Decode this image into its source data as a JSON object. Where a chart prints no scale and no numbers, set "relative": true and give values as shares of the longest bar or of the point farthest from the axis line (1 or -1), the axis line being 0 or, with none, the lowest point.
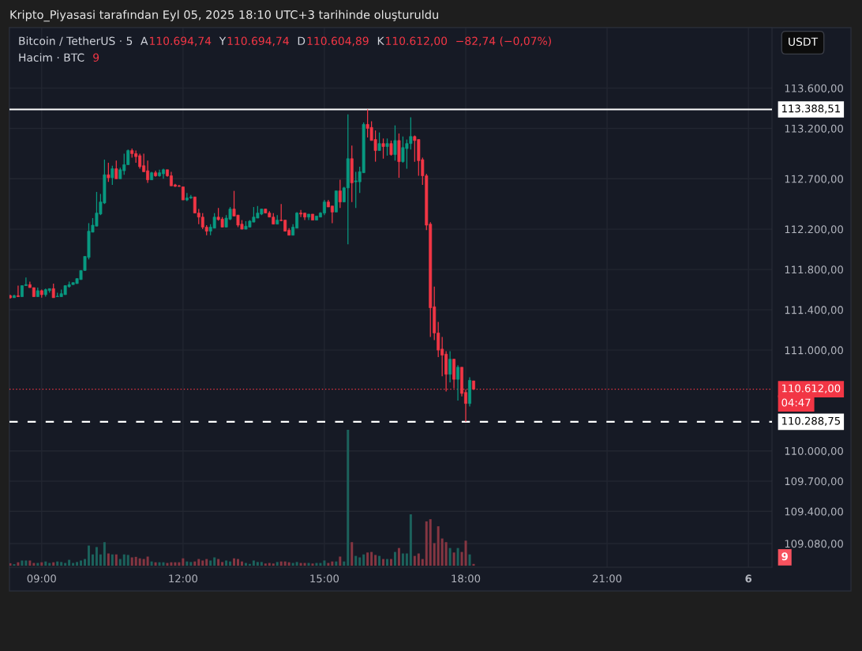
{
  "chart_data": [
    {
      "type": "candlestick",
      "title": "Bitcoin / TetherUS · 5",
      "annotations": [
        "A",
        "110.694,74",
        "Y",
        "110.694,74",
        "D",
        "110.604,89",
        "K",
        "110.612,00",
        "−82,74 (−0,07%)",
        "Kripto_Piyasasi tarafından Eyl 05, 2025 18:10 UTC+3 tarihinde oluşturuldu",
        "USDT",
        "04:47"
      ],
      "x": [
        "2025-09-05T08:20",
        "2025-09-05T08:25",
        "2025-09-05T08:30",
        "2025-09-05T08:35",
        "2025-09-05T08:40",
        "2025-09-05T08:45",
        "2025-09-05T08:50",
        "2025-09-05T08:55",
        "2025-09-05T09:00",
        "2025-09-05T09:05",
        "2025-09-05T09:10",
        "2025-09-05T09:15",
        "2025-09-05T09:20",
        "2025-09-05T09:25",
        "2025-09-05T09:30",
        "2025-09-05T09:35",
        "2025-09-05T09:40",
        "2025-09-05T09:45",
        "2025-09-05T09:50",
        "2025-09-05T09:55",
        "2025-09-05T10:00",
        "2025-09-05T10:05",
        "2025-09-05T10:10",
        "2025-09-05T10:15",
        "2025-09-05T10:20",
        "2025-09-05T10:25",
        "2025-09-05T10:30",
        "2025-09-05T10:35",
        "2025-09-05T10:40",
        "2025-09-05T10:45",
        "2025-09-05T10:50",
        "2025-09-05T10:55",
        "2025-09-05T11:00",
        "2025-09-05T11:05",
        "2025-09-05T11:10",
        "2025-09-05T11:15",
        "2025-09-05T11:20",
        "2025-09-05T11:25",
        "2025-09-05T11:30",
        "2025-09-05T11:35",
        "2025-09-05T11:40",
        "2025-09-05T11:45",
        "2025-09-05T11:50",
        "2025-09-05T11:55",
        "2025-09-05T12:00",
        "2025-09-05T12:05",
        "2025-09-05T12:10",
        "2025-09-05T12:15",
        "2025-09-05T12:20",
        "2025-09-05T12:25",
        "2025-09-05T12:30",
        "2025-09-05T12:35",
        "2025-09-05T12:40",
        "2025-09-05T12:45",
        "2025-09-05T12:50",
        "2025-09-05T12:55",
        "2025-09-05T13:00",
        "2025-09-05T13:05",
        "2025-09-05T13:10",
        "2025-09-05T13:15",
        "2025-09-05T13:20",
        "2025-09-05T13:25",
        "2025-09-05T13:30",
        "2025-09-05T13:35",
        "2025-09-05T13:40",
        "2025-09-05T13:45",
        "2025-09-05T13:50",
        "2025-09-05T13:55",
        "2025-09-05T14:00",
        "2025-09-05T14:05",
        "2025-09-05T14:10",
        "2025-09-05T14:15",
        "2025-09-05T14:20",
        "2025-09-05T14:25",
        "2025-09-05T14:30",
        "2025-09-05T14:35",
        "2025-09-05T14:40",
        "2025-09-05T14:45",
        "2025-09-05T14:50",
        "2025-09-05T14:55",
        "2025-09-05T15:00",
        "2025-09-05T15:05",
        "2025-09-05T15:10",
        "2025-09-05T15:15",
        "2025-09-05T15:20",
        "2025-09-05T15:25",
        "2025-09-05T15:30",
        "2025-09-05T15:35",
        "2025-09-05T15:40",
        "2025-09-05T15:45",
        "2025-09-05T15:50",
        "2025-09-05T15:55",
        "2025-09-05T16:00",
        "2025-09-05T16:05",
        "2025-09-05T16:10",
        "2025-09-05T16:15",
        "2025-09-05T16:20",
        "2025-09-05T16:25",
        "2025-09-05T16:30",
        "2025-09-05T16:35",
        "2025-09-05T16:40",
        "2025-09-05T16:45",
        "2025-09-05T16:50",
        "2025-09-05T16:55",
        "2025-09-05T17:00",
        "2025-09-05T17:05",
        "2025-09-05T17:10",
        "2025-09-05T17:15",
        "2025-09-05T17:20",
        "2025-09-05T17:25",
        "2025-09-05T17:30",
        "2025-09-05T17:35",
        "2025-09-05T17:40",
        "2025-09-05T17:45",
        "2025-09-05T17:50",
        "2025-09-05T17:55",
        "2025-09-05T18:00",
        "2025-09-05T18:05",
        "2025-09-05T18:10"
      ],
      "ohlc": [
        [
          111540,
          111550,
          111510,
          111520
        ],
        [
          111520,
          111550,
          111520,
          111540
        ],
        [
          111540,
          111640,
          111530,
          111530
        ],
        [
          111530,
          111640,
          111530,
          111640
        ],
        [
          111640,
          111720,
          111640,
          111650
        ],
        [
          111650,
          111680,
          111620,
          111620
        ],
        [
          111620,
          111620,
          111530,
          111530
        ],
        [
          111530,
          111620,
          111530,
          111590
        ],
        [
          111590,
          111600,
          111520,
          111550
        ],
        [
          111550,
          111610,
          111530,
          111600
        ],
        [
          111590,
          111610,
          111570,
          111610
        ],
        [
          111610,
          111660,
          111520,
          111520
        ],
        [
          111530,
          111570,
          111530,
          111535
        ],
        [
          111530,
          111600,
          111530,
          111560
        ],
        [
          111550,
          111640,
          111550,
          111640
        ],
        [
          111630,
          111680,
          111620,
          111650
        ],
        [
          111650,
          111670,
          111650,
          111670
        ],
        [
          111660,
          111710,
          111660,
          111710
        ],
        [
          111700,
          111790,
          111700,
          111790
        ],
        [
          111790,
          111930,
          111790,
          111930
        ],
        [
          111920,
          112260,
          111900,
          112180
        ],
        [
          112170,
          112310,
          112170,
          112240
        ],
        [
          112230,
          112570,
          112230,
          112360
        ],
        [
          112350,
          112550,
          112340,
          112470
        ],
        [
          112460,
          112890,
          112450,
          112740
        ],
        [
          112740,
          112860,
          112670,
          112710
        ],
        [
          112710,
          112830,
          112640,
          112800
        ],
        [
          112800,
          112880,
          112700,
          112700
        ],
        [
          112700,
          112810,
          112700,
          112790
        ],
        [
          112780,
          112950,
          112740,
          112840
        ],
        [
          112840,
          112990,
          112840,
          112980
        ],
        [
          112980,
          113000,
          112910,
          112950
        ],
        [
          112950,
          112980,
          112860,
          112920
        ],
        [
          112930,
          112950,
          112800,
          112820
        ],
        [
          112830,
          112950,
          112770,
          112770
        ],
        [
          112780,
          112880,
          112660,
          112690
        ],
        [
          112690,
          112770,
          112690,
          112760
        ],
        [
          112760,
          112780,
          112720,
          112730
        ],
        [
          112730,
          112790,
          112720,
          112760
        ],
        [
          112750,
          112800,
          112700,
          112790
        ],
        [
          112790,
          112790,
          112720,
          112730
        ],
        [
          112730,
          112770,
          112630,
          112630
        ],
        [
          112640,
          112650,
          112620,
          112625
        ],
        [
          112630,
          112640,
          112620,
          112625
        ],
        [
          112620,
          112620,
          112490,
          112490
        ],
        [
          112490,
          112560,
          112480,
          112510
        ],
        [
          112510,
          112540,
          112500,
          112520
        ],
        [
          112520,
          112520,
          112360,
          112360
        ],
        [
          112360,
          112400,
          112250,
          112320
        ],
        [
          112320,
          112360,
          112200,
          112220
        ],
        [
          112220,
          112240,
          112140,
          112180
        ],
        [
          112180,
          112250,
          112140,
          112220
        ],
        [
          112210,
          112360,
          112210,
          112320
        ],
        [
          112320,
          112410,
          112285,
          112295
        ],
        [
          112300,
          112320,
          112220,
          112220
        ],
        [
          112220,
          112340,
          112220,
          112310
        ],
        [
          112300,
          112420,
          112290,
          112400
        ],
        [
          112400,
          112580,
          112330,
          112330
        ],
        [
          112340,
          112340,
          112220,
          112240
        ],
        [
          112250,
          112290,
          112200,
          112200
        ],
        [
          112200,
          112280,
          112200,
          112230
        ],
        [
          112220,
          112290,
          112220,
          112280
        ],
        [
          112270,
          112420,
          112270,
          112320
        ],
        [
          112310,
          112430,
          112310,
          112360
        ],
        [
          112350,
          112400,
          112340,
          112400
        ],
        [
          112400,
          112400,
          112360,
          112360
        ],
        [
          112360,
          112380,
          112320,
          112320
        ],
        [
          112320,
          112360,
          112250,
          112250
        ],
        [
          112250,
          112340,
          112250,
          112290
        ],
        [
          112290,
          112450,
          112280,
          112285
        ],
        [
          112290,
          112290,
          112180,
          112180
        ],
        [
          112190,
          112210,
          112140,
          112140
        ],
        [
          112140,
          112250,
          112140,
          112220
        ],
        [
          112210,
          112370,
          112210,
          112360
        ],
        [
          112360,
          112390,
          112320,
          112350
        ],
        [
          112360,
          112360,
          112290,
          112320
        ],
        [
          112320,
          112350,
          112290,
          112350
        ],
        [
          112350,
          112350,
          112290,
          112290
        ],
        [
          112290,
          112330,
          112290,
          112330
        ],
        [
          112320,
          112370,
          112320,
          112360
        ],
        [
          112360,
          112490,
          112340,
          112470
        ],
        [
          112470,
          112490,
          112420,
          112420
        ],
        [
          112430,
          112430,
          112260,
          112370
        ],
        [
          112370,
          112580,
          112370,
          112580
        ],
        [
          112580,
          112690,
          112410,
          112470
        ],
        [
          112470,
          112620,
          112470,
          112610
        ],
        [
          112610,
          113340,
          112050,
          112900
        ],
        [
          112900,
          113030,
          112470,
          112660
        ],
        [
          112670,
          112770,
          112410,
          112680
        ],
        [
          112670,
          112820,
          112560,
          112770
        ],
        [
          112760,
          113260,
          112760,
          113240
        ],
        [
          113240,
          113388.51,
          113110,
          113200
        ],
        [
          113210,
          113270,
          113080,
          113080
        ],
        [
          113090,
          113180,
          112870,
          112980
        ],
        [
          112980,
          113160,
          112980,
          113050
        ],
        [
          113050,
          113100,
          112900,
          113020
        ],
        [
          113020,
          113100,
          112930,
          113050
        ],
        [
          113050,
          113080,
          112930,
          112940
        ],
        [
          112940,
          113230,
          112880,
          113080
        ],
        [
          113080,
          113150,
          112710,
          112870
        ],
        [
          112870,
          113120,
          112860,
          113010
        ],
        [
          113000,
          113090,
          112800,
          113050
        ],
        [
          113050,
          113310,
          112990,
          113120
        ],
        [
          113120,
          113130,
          112870,
          113080
        ],
        [
          113090,
          113090,
          112730,
          112880
        ],
        [
          112890,
          112910,
          112640,
          112730
        ],
        [
          112730,
          112750,
          112190,
          112240
        ],
        [
          112250,
          112270,
          111130,
          111420
        ],
        [
          111430,
          111630,
          111100,
          111170
        ],
        [
          111170,
          111280,
          110930,
          111000
        ],
        [
          111010,
          111130,
          110740,
          110950
        ],
        [
          110960,
          110990,
          110590,
          110760
        ],
        [
          110760,
          110990,
          110680,
          110910
        ],
        [
          110910,
          110910,
          110620,
          110710
        ],
        [
          110710,
          110850,
          110500,
          110830
        ],
        [
          110830,
          110830,
          110540,
          110570
        ],
        [
          110580,
          110610,
          110288.75,
          110470
        ],
        [
          110470,
          110730,
          110440,
          110700
        ],
        [
          110694.74,
          110694.74,
          110604.89,
          110612.0
        ]
      ],
      "colors": [
        "#f23645",
        "#089981",
        "#f23645",
        "#089981",
        "#089981",
        "#f23645",
        "#f23645",
        "#089981",
        "#f23645",
        "#089981",
        "#089981",
        "#f23645",
        "#089981",
        "#089981",
        "#089981",
        "#089981",
        "#089981",
        "#089981",
        "#089981",
        "#089981",
        "#089981",
        "#089981",
        "#089981",
        "#089981",
        "#089981",
        "#f23645",
        "#089981",
        "#f23645",
        "#089981",
        "#089981",
        "#089981",
        "#f23645",
        "#f23645",
        "#f23645",
        "#f23645",
        "#f23645",
        "#089981",
        "#f23645",
        "#089981",
        "#089981",
        "#f23645",
        "#f23645",
        "#f23645",
        "#f23645",
        "#f23645",
        "#089981",
        "#089981",
        "#f23645",
        "#f23645",
        "#f23645",
        "#f23645",
        "#089981",
        "#089981",
        "#f23645",
        "#f23645",
        "#089981",
        "#089981",
        "#f23645",
        "#f23645",
        "#f23645",
        "#089981",
        "#089981",
        "#089981",
        "#089981",
        "#089981",
        "#f23645",
        "#f23645",
        "#f23645",
        "#089981",
        "#f23645",
        "#f23645",
        "#f23645",
        "#089981",
        "#089981",
        "#f23645",
        "#f23645",
        "#089981",
        "#f23645",
        "#089981",
        "#089981",
        "#089981",
        "#f23645",
        "#f23645",
        "#089981",
        "#f23645",
        "#089981",
        "#089981",
        "#f23645",
        "#089981",
        "#089981",
        "#089981",
        "#f23645",
        "#f23645",
        "#f23645",
        "#089981",
        "#f23645",
        "#089981",
        "#f23645",
        "#089981",
        "#f23645",
        "#089981",
        "#089981",
        "#089981",
        "#f23645",
        "#f23645",
        "#f23645",
        "#f23645",
        "#f23645",
        "#f23645",
        "#f23645",
        "#f23645",
        "#f23645",
        "#089981",
        "#f23645",
        "#089981",
        "#f23645",
        "#f23645",
        "#089981",
        "#f23645"
      ],
      "xlim": [
        "2025-09-05T08:19",
        "2025-09-06T00:30"
      ],
      "xticks": [
        {
          "value": "2025-09-05T09:00",
          "label": "09:00"
        },
        {
          "value": "2025-09-05T12:00",
          "label": "12:00"
        },
        {
          "value": "2025-09-05T15:00",
          "label": "15:00"
        },
        {
          "value": "2025-09-05T18:00",
          "label": "18:00"
        },
        {
          "value": "2025-09-05T21:00",
          "label": "21:00"
        },
        {
          "value": "2025-09-06T00:00",
          "label": "6"
        }
      ],
      "ylim": [
        108845,
        114200
      ],
      "yticks": [
        {
          "value": 113600,
          "label": "113.600,00"
        },
        {
          "value": 113200,
          "label": "113.200,00"
        },
        {
          "value": 112700,
          "label": "112.700,00"
        },
        {
          "value": 112200,
          "label": "112.200,00"
        },
        {
          "value": 111800,
          "label": "111.800,00"
        },
        {
          "value": 111400,
          "label": "111.400,00"
        },
        {
          "value": 111000,
          "label": "111.000,00"
        },
        {
          "value": 110000,
          "label": "110.000,00"
        },
        {
          "value": 109700,
          "label": "109.700,00"
        },
        {
          "value": 109400,
          "label": "109.400,00"
        },
        {
          "value": 109080,
          "label": "109.080,00"
        }
      ],
      "grid": true,
      "ref_lines": [
        {
          "axis": "y",
          "value": 113388.51,
          "label": "113.388,51",
          "color": "#ffffff",
          "line_style": "solid"
        },
        {
          "axis": "y",
          "value": 110288.75,
          "label": "110.288,75",
          "color": "#ffffff",
          "line_style": "dashed"
        },
        {
          "axis": "y",
          "value": 110612.0,
          "label": "110.612,00",
          "color": "#f23645",
          "line_style": "dotted"
        }
      ]
    },
    {
      "type": "bar",
      "title": "Hacim · BTC",
      "annotations": [
        "9",
        "9"
      ],
      "relative": true,
      "tick_labels": false,
      "x": [
        "2025-09-05T08:20",
        "2025-09-05T08:25",
        "2025-09-05T08:30",
        "2025-09-05T08:35",
        "2025-09-05T08:40",
        "2025-09-05T08:45",
        "2025-09-05T08:50",
        "2025-09-05T08:55",
        "2025-09-05T09:00",
        "2025-09-05T09:05",
        "2025-09-05T09:10",
        "2025-09-05T09:15",
        "2025-09-05T09:20",
        "2025-09-05T09:25",
        "2025-09-05T09:30",
        "2025-09-05T09:35",
        "2025-09-05T09:40",
        "2025-09-05T09:45",
        "2025-09-05T09:50",
        "2025-09-05T09:55",
        "2025-09-05T10:00",
        "2025-09-05T10:05",
        "2025-09-05T10:10",
        "2025-09-05T10:15",
        "2025-09-05T10:20",
        "2025-09-05T10:25",
        "2025-09-05T10:30",
        "2025-09-05T10:35",
        "2025-09-05T10:40",
        "2025-09-05T10:45",
        "2025-09-05T10:50",
        "2025-09-05T10:55",
        "2025-09-05T11:00",
        "2025-09-05T11:05",
        "2025-09-05T11:10",
        "2025-09-05T11:15",
        "2025-09-05T11:20",
        "2025-09-05T11:25",
        "2025-09-05T11:30",
        "2025-09-05T11:35",
        "2025-09-05T11:40",
        "2025-09-05T11:45",
        "2025-09-05T11:50",
        "2025-09-05T11:55",
        "2025-09-05T12:00",
        "2025-09-05T12:05",
        "2025-09-05T12:10",
        "2025-09-05T12:15",
        "2025-09-05T12:20",
        "2025-09-05T12:25",
        "2025-09-05T12:30",
        "2025-09-05T12:35",
        "2025-09-05T12:40",
        "2025-09-05T12:45",
        "2025-09-05T12:50",
        "2025-09-05T12:55",
        "2025-09-05T13:00",
        "2025-09-05T13:05",
        "2025-09-05T13:10",
        "2025-09-05T13:15",
        "2025-09-05T13:20",
        "2025-09-05T13:25",
        "2025-09-05T13:30",
        "2025-09-05T13:35",
        "2025-09-05T13:40",
        "2025-09-05T13:45",
        "2025-09-05T13:50",
        "2025-09-05T13:55",
        "2025-09-05T14:00",
        "2025-09-05T14:05",
        "2025-09-05T14:10",
        "2025-09-05T14:15",
        "2025-09-05T14:20",
        "2025-09-05T14:25",
        "2025-09-05T14:30",
        "2025-09-05T14:35",
        "2025-09-05T14:40",
        "2025-09-05T14:45",
        "2025-09-05T14:50",
        "2025-09-05T14:55",
        "2025-09-05T15:00",
        "2025-09-05T15:05",
        "2025-09-05T15:10",
        "2025-09-05T15:15",
        "2025-09-05T15:20",
        "2025-09-05T15:25",
        "2025-09-05T15:30",
        "2025-09-05T15:35",
        "2025-09-05T15:40",
        "2025-09-05T15:45",
        "2025-09-05T15:50",
        "2025-09-05T15:55",
        "2025-09-05T16:00",
        "2025-09-05T16:05",
        "2025-09-05T16:10",
        "2025-09-05T16:15",
        "2025-09-05T16:20",
        "2025-09-05T16:25",
        "2025-09-05T16:30",
        "2025-09-05T16:35",
        "2025-09-05T16:40",
        "2025-09-05T16:45",
        "2025-09-05T16:50",
        "2025-09-05T16:55",
        "2025-09-05T17:00",
        "2025-09-05T17:05",
        "2025-09-05T17:10",
        "2025-09-05T17:15",
        "2025-09-05T17:20",
        "2025-09-05T17:25",
        "2025-09-05T17:30",
        "2025-09-05T17:35",
        "2025-09-05T17:40",
        "2025-09-05T17:45",
        "2025-09-05T17:50",
        "2025-09-05T17:55",
        "2025-09-05T18:00",
        "2025-09-05T18:05",
        "2025-09-05T18:10"
      ],
      "xlim": [
        "2025-09-05T08:19",
        "2025-09-06T00:30"
      ],
      "values": [
        0.018,
        0.011,
        0.025,
        0.038,
        0.038,
        0.038,
        0.02,
        0.02,
        0.025,
        0.031,
        0.02,
        0.025,
        0.031,
        0.027,
        0.02,
        0.043,
        0.02,
        0.027,
        0.038,
        0.049,
        0.148,
        0.083,
        0.137,
        0.083,
        0.173,
        0.09,
        0.083,
        0.083,
        0.049,
        0.083,
        0.079,
        0.061,
        0.065,
        0.054,
        0.049,
        0.067,
        0.031,
        0.025,
        0.025,
        0.025,
        0.02,
        0.025,
        0.025,
        0.025,
        0.054,
        0.031,
        0.027,
        0.031,
        0.049,
        0.038,
        0.049,
        0.038,
        0.061,
        0.049,
        0.027,
        0.038,
        0.031,
        0.054,
        0.049,
        0.031,
        0.02,
        0.013,
        0.038,
        0.027,
        0.027,
        0.016,
        0.02,
        0.016,
        0.027,
        0.031,
        0.031,
        0.025,
        0.02,
        0.027,
        0.02,
        0.02,
        0.02,
        0.016,
        0.02,
        0.02,
        0.038,
        0.02,
        0.031,
        0.031,
        0.067,
        0.031,
        1,
        0.173,
        0.072,
        0.061,
        0.083,
        0.097,
        0.101,
        0.079,
        0.072,
        0.049,
        0.049,
        0.049,
        0.101,
        0.13,
        0.09,
        0.09,
        0.378,
        0.072,
        0.09,
        0.049,
        0.326,
        0.342,
        0.166,
        0.29,
        0.2,
        0.173,
        0.13,
        0.097,
        0.13,
        0.101,
        0.184,
        0.083,
        0.013
      ],
      "colors": [
        "#863642",
        "#1c625c",
        "#863642",
        "#1c625c",
        "#1c625c",
        "#863642",
        "#863642",
        "#1c625c",
        "#863642",
        "#1c625c",
        "#1c625c",
        "#863642",
        "#1c625c",
        "#1c625c",
        "#1c625c",
        "#1c625c",
        "#1c625c",
        "#1c625c",
        "#1c625c",
        "#1c625c",
        "#1c625c",
        "#1c625c",
        "#1c625c",
        "#1c625c",
        "#1c625c",
        "#863642",
        "#1c625c",
        "#863642",
        "#1c625c",
        "#1c625c",
        "#1c625c",
        "#863642",
        "#863642",
        "#863642",
        "#863642",
        "#863642",
        "#1c625c",
        "#863642",
        "#1c625c",
        "#1c625c",
        "#863642",
        "#863642",
        "#863642",
        "#863642",
        "#863642",
        "#1c625c",
        "#1c625c",
        "#863642",
        "#863642",
        "#863642",
        "#863642",
        "#1c625c",
        "#1c625c",
        "#863642",
        "#863642",
        "#1c625c",
        "#1c625c",
        "#863642",
        "#863642",
        "#863642",
        "#1c625c",
        "#1c625c",
        "#1c625c",
        "#1c625c",
        "#1c625c",
        "#863642",
        "#863642",
        "#863642",
        "#1c625c",
        "#863642",
        "#863642",
        "#863642",
        "#1c625c",
        "#1c625c",
        "#863642",
        "#863642",
        "#1c625c",
        "#863642",
        "#1c625c",
        "#1c625c",
        "#1c625c",
        "#863642",
        "#863642",
        "#1c625c",
        "#863642",
        "#1c625c",
        "#1c625c",
        "#863642",
        "#1c625c",
        "#1c625c",
        "#1c625c",
        "#863642",
        "#863642",
        "#863642",
        "#1c625c",
        "#863642",
        "#1c625c",
        "#863642",
        "#1c625c",
        "#863642",
        "#1c625c",
        "#1c625c",
        "#1c625c",
        "#863642",
        "#863642",
        "#863642",
        "#863642",
        "#863642",
        "#863642",
        "#863642",
        "#863642",
        "#863642",
        "#1c625c",
        "#863642",
        "#1c625c",
        "#863642",
        "#863642",
        "#1c625c",
        "#863642"
      ]
    }
  ]
}
